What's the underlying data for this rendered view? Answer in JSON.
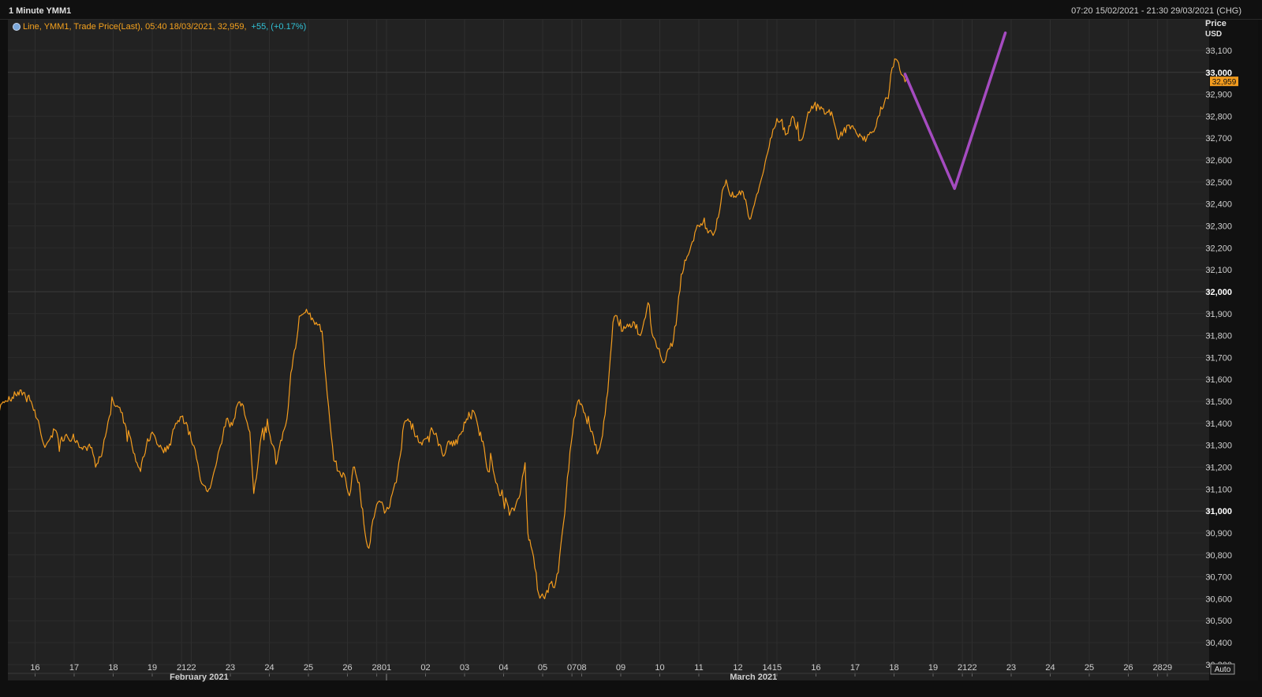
{
  "window": {
    "title": "1 Minute YMM1",
    "date_range": "07:20 15/02/2021 - 21:30 29/03/2021 (CHG)"
  },
  "legend": {
    "text": "Line, YMM1, Trade Price(Last), 05:40 18/03/2021, 32,959,",
    "change": "+55, (+0.17%)"
  },
  "colors": {
    "price_line": "#f39c1e",
    "projection": "#a54bc0",
    "last_price_tag": "#f39c1e",
    "change_text": "#31c3d7"
  },
  "auto_button": "Auto",
  "chart_data": {
    "type": "line",
    "title": "1 Minute YMM1",
    "ylabel": "Price",
    "yunit": "USD",
    "ylim": [
      30260,
      33240
    ],
    "y_ticks": [
      30300,
      30400,
      30500,
      30600,
      30700,
      30800,
      30900,
      31000,
      31100,
      31200,
      31300,
      31400,
      31500,
      31600,
      31700,
      31800,
      31900,
      32000,
      32100,
      32200,
      32300,
      32400,
      32500,
      32600,
      32700,
      32800,
      32900,
      33000,
      33100
    ],
    "y_major_ticks": [
      31000,
      32000,
      33000
    ],
    "last_price": 32959,
    "last_price_label": "32,959",
    "trading_days": [
      {
        "label": "15",
        "index": 0,
        "show": false
      },
      {
        "label": "16",
        "index": 1
      },
      {
        "label": "17",
        "index": 2
      },
      {
        "label": "18",
        "index": 3
      },
      {
        "label": "19",
        "index": 4
      },
      {
        "label": "21",
        "index": 4.75
      },
      {
        "label": "22",
        "index": 5
      },
      {
        "label": "23",
        "index": 6
      },
      {
        "label": "24",
        "index": 7
      },
      {
        "label": "25",
        "index": 8
      },
      {
        "label": "26",
        "index": 9
      },
      {
        "label": "28",
        "index": 9.75
      },
      {
        "label": "01",
        "index": 10
      },
      {
        "label": "02",
        "index": 11
      },
      {
        "label": "03",
        "index": 12
      },
      {
        "label": "04",
        "index": 13
      },
      {
        "label": "05",
        "index": 14
      },
      {
        "label": "07",
        "index": 14.75
      },
      {
        "label": "08",
        "index": 15
      },
      {
        "label": "09",
        "index": 16
      },
      {
        "label": "10",
        "index": 17
      },
      {
        "label": "11",
        "index": 18
      },
      {
        "label": "12",
        "index": 19
      },
      {
        "label": "14",
        "index": 19.75
      },
      {
        "label": "15",
        "index": 20
      },
      {
        "label": "16",
        "index": 21
      },
      {
        "label": "17",
        "index": 22
      },
      {
        "label": "18",
        "index": 23
      },
      {
        "label": "19",
        "index": 24
      },
      {
        "label": "21",
        "index": 24.75
      },
      {
        "label": "22",
        "index": 25
      },
      {
        "label": "23",
        "index": 26
      },
      {
        "label": "24",
        "index": 27
      },
      {
        "label": "25",
        "index": 28
      },
      {
        "label": "26",
        "index": 29
      },
      {
        "label": "28",
        "index": 29.75
      },
      {
        "label": "29",
        "index": 30
      }
    ],
    "month_labels": [
      {
        "label": "February 2021",
        "index": 5.2
      },
      {
        "label": "March 2021",
        "index": 19.4
      }
    ],
    "month_separator_index": 10,
    "series": [
      {
        "name": "YMM1 Trade Price(Last)",
        "points": [
          [
            0.0,
            31450
          ],
          [
            0.15,
            31490
          ],
          [
            0.3,
            31500
          ],
          [
            0.5,
            31530
          ],
          [
            0.7,
            31540
          ],
          [
            0.9,
            31500
          ],
          [
            1.05,
            31420
          ],
          [
            1.15,
            31350
          ],
          [
            1.25,
            31290
          ],
          [
            1.35,
            31320
          ],
          [
            1.5,
            31370
          ],
          [
            1.65,
            31320
          ],
          [
            1.8,
            31350
          ],
          [
            1.95,
            31330
          ],
          [
            2.1,
            31310
          ],
          [
            2.3,
            31290
          ],
          [
            2.45,
            31290
          ],
          [
            2.55,
            31200
          ],
          [
            2.7,
            31250
          ],
          [
            2.8,
            31340
          ],
          [
            2.9,
            31430
          ],
          [
            3.0,
            31500
          ],
          [
            3.1,
            31480
          ],
          [
            3.2,
            31450
          ],
          [
            3.3,
            31400
          ],
          [
            3.45,
            31330
          ],
          [
            3.55,
            31260
          ],
          [
            3.7,
            31180
          ],
          [
            3.85,
            31300
          ],
          [
            4.0,
            31360
          ],
          [
            4.15,
            31300
          ],
          [
            4.35,
            31270
          ],
          [
            4.5,
            31340
          ],
          [
            4.6,
            31400
          ],
          [
            4.75,
            31430
          ],
          [
            4.9,
            31390
          ],
          [
            5.0,
            31320
          ],
          [
            5.1,
            31280
          ],
          [
            5.2,
            31180
          ],
          [
            5.3,
            31120
          ],
          [
            5.45,
            31100
          ],
          [
            5.6,
            31190
          ],
          [
            5.75,
            31300
          ],
          [
            5.9,
            31420
          ],
          [
            6.05,
            31390
          ],
          [
            6.15,
            31470
          ],
          [
            6.3,
            31490
          ],
          [
            6.4,
            31420
          ],
          [
            6.5,
            31360
          ],
          [
            6.6,
            31080
          ],
          [
            6.7,
            31200
          ],
          [
            6.8,
            31350
          ],
          [
            6.95,
            31420
          ],
          [
            7.05,
            31310
          ],
          [
            7.2,
            31230
          ],
          [
            7.35,
            31360
          ],
          [
            7.45,
            31420
          ],
          [
            7.55,
            31630
          ],
          [
            7.7,
            31780
          ],
          [
            7.8,
            31890
          ],
          [
            7.95,
            31920
          ],
          [
            8.1,
            31880
          ],
          [
            8.2,
            31860
          ],
          [
            8.35,
            31820
          ],
          [
            8.45,
            31600
          ],
          [
            8.55,
            31410
          ],
          [
            8.65,
            31230
          ],
          [
            8.8,
            31180
          ],
          [
            8.95,
            31150
          ],
          [
            9.05,
            31070
          ],
          [
            9.15,
            31200
          ],
          [
            9.3,
            31130
          ],
          [
            9.45,
            30900
          ],
          [
            9.55,
            30830
          ],
          [
            9.65,
            30960
          ],
          [
            9.75,
            31030
          ],
          [
            9.85,
            31040
          ],
          [
            9.95,
            30990
          ],
          [
            10.05,
            31010
          ],
          [
            10.15,
            31080
          ],
          [
            10.25,
            31130
          ],
          [
            10.35,
            31250
          ],
          [
            10.45,
            31400
          ],
          [
            10.55,
            31420
          ],
          [
            10.7,
            31370
          ],
          [
            10.85,
            31310
          ],
          [
            11.0,
            31330
          ],
          [
            11.15,
            31380
          ],
          [
            11.3,
            31330
          ],
          [
            11.45,
            31250
          ],
          [
            11.6,
            31320
          ],
          [
            11.75,
            31300
          ],
          [
            11.9,
            31350
          ],
          [
            12.05,
            31420
          ],
          [
            12.2,
            31460
          ],
          [
            12.35,
            31380
          ],
          [
            12.5,
            31290
          ],
          [
            12.6,
            31180
          ],
          [
            12.7,
            31230
          ],
          [
            12.8,
            31130
          ],
          [
            12.9,
            31070
          ],
          [
            13.05,
            31060
          ],
          [
            13.15,
            30980
          ],
          [
            13.3,
            31020
          ],
          [
            13.45,
            31110
          ],
          [
            13.55,
            31220
          ],
          [
            13.62,
            30900
          ],
          [
            13.7,
            30840
          ],
          [
            13.8,
            30740
          ],
          [
            13.9,
            30620
          ],
          [
            14.05,
            30600
          ],
          [
            14.2,
            30670
          ],
          [
            14.3,
            30650
          ],
          [
            14.4,
            30720
          ],
          [
            14.5,
            30900
          ],
          [
            14.6,
            31070
          ],
          [
            14.7,
            31270
          ],
          [
            14.8,
            31420
          ],
          [
            14.9,
            31500
          ],
          [
            15.05,
            31450
          ],
          [
            15.2,
            31390
          ],
          [
            15.3,
            31340
          ],
          [
            15.4,
            31260
          ],
          [
            15.5,
            31320
          ],
          [
            15.6,
            31440
          ],
          [
            15.7,
            31620
          ],
          [
            15.8,
            31860
          ],
          [
            15.9,
            31890
          ],
          [
            16.05,
            31820
          ],
          [
            16.2,
            31840
          ],
          [
            16.35,
            31860
          ],
          [
            16.5,
            31800
          ],
          [
            16.6,
            31870
          ],
          [
            16.7,
            31950
          ],
          [
            16.8,
            31810
          ],
          [
            16.95,
            31740
          ],
          [
            17.05,
            31690
          ],
          [
            17.15,
            31690
          ],
          [
            17.25,
            31740
          ],
          [
            17.35,
            31780
          ],
          [
            17.45,
            31910
          ],
          [
            17.55,
            32080
          ],
          [
            17.7,
            32160
          ],
          [
            17.8,
            32210
          ],
          [
            17.9,
            32270
          ],
          [
            18.05,
            32310
          ],
          [
            18.2,
            32290
          ],
          [
            18.3,
            32280
          ],
          [
            18.4,
            32270
          ],
          [
            18.5,
            32340
          ],
          [
            18.6,
            32460
          ],
          [
            18.7,
            32510
          ],
          [
            18.8,
            32440
          ],
          [
            18.95,
            32430
          ],
          [
            19.1,
            32460
          ],
          [
            19.2,
            32420
          ],
          [
            19.3,
            32330
          ],
          [
            19.45,
            32420
          ],
          [
            19.55,
            32480
          ],
          [
            19.7,
            32590
          ],
          [
            19.8,
            32660
          ],
          [
            19.9,
            32740
          ],
          [
            20.0,
            32790
          ],
          [
            20.1,
            32780
          ],
          [
            20.25,
            32720
          ],
          [
            20.4,
            32800
          ],
          [
            20.5,
            32740
          ],
          [
            20.6,
            32690
          ],
          [
            20.7,
            32730
          ],
          [
            20.8,
            32820
          ],
          [
            20.95,
            32850
          ],
          [
            21.1,
            32830
          ],
          [
            21.25,
            32810
          ],
          [
            21.4,
            32820
          ],
          [
            21.55,
            32700
          ],
          [
            21.7,
            32730
          ],
          [
            21.85,
            32760
          ],
          [
            22.0,
            32740
          ],
          [
            22.15,
            32710
          ],
          [
            22.3,
            32700
          ],
          [
            22.45,
            32730
          ],
          [
            22.6,
            32800
          ],
          [
            22.75,
            32860
          ],
          [
            22.85,
            32880
          ],
          [
            22.95,
            33020
          ],
          [
            23.05,
            33060
          ],
          [
            23.15,
            33010
          ],
          [
            23.25,
            32980
          ],
          [
            23.35,
            32959
          ]
        ]
      },
      {
        "name": "Projection",
        "points": [
          [
            23.28,
            32992
          ],
          [
            24.55,
            32470
          ],
          [
            25.85,
            33180
          ]
        ]
      }
    ],
    "grid": true,
    "legend_position": "top-left"
  }
}
